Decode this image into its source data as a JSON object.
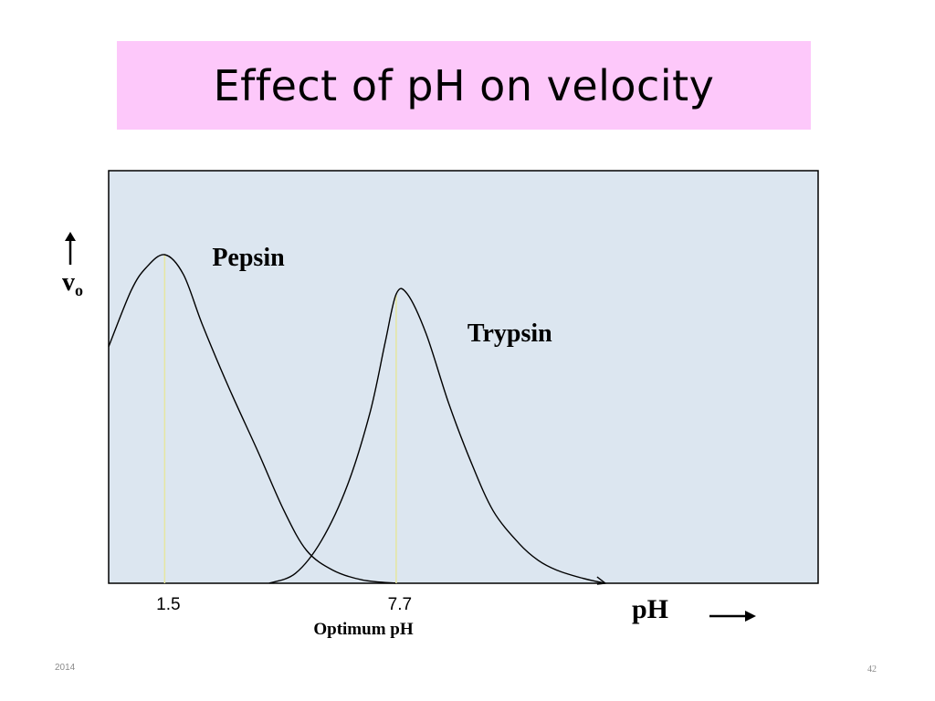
{
  "slide": {
    "title": "Effect of  pH  on velocity",
    "footer_left": "2014",
    "footer_right": "42"
  },
  "colors": {
    "title_bg": "#fdc8fa",
    "plot_bg": "#dce6f0",
    "curve": "#000000",
    "optimum_line": "#e6e6a0"
  },
  "chart_data": {
    "type": "line",
    "title": "",
    "xlabel": "pH",
    "ylabel": "v",
    "ylabel_subscript": "o",
    "annotation": "Optimum pH",
    "series": [
      {
        "name": "Pepsin",
        "optimum_pH": 1.5,
        "optimum_label": "1.5",
        "x": [
          0.0,
          0.6,
          1.0,
          1.5,
          2.0,
          2.5,
          3.2,
          4.0,
          4.7,
          5.3,
          6.0,
          6.8,
          7.7
        ],
        "y": [
          0.72,
          0.89,
          0.96,
          1.0,
          0.94,
          0.79,
          0.6,
          0.4,
          0.22,
          0.1,
          0.04,
          0.01,
          0.0
        ]
      },
      {
        "name": "Trypsin",
        "optimum_pH": 7.7,
        "optimum_label": "7.7",
        "x": [
          4.3,
          5.0,
          5.7,
          6.4,
          7.0,
          7.4,
          7.7,
          8.0,
          8.5,
          9.1,
          9.7,
          10.3,
          11.0,
          11.5,
          12.0,
          12.7,
          13.3
        ],
        "y": [
          0.0,
          0.03,
          0.13,
          0.3,
          0.52,
          0.73,
          0.88,
          0.88,
          0.76,
          0.55,
          0.37,
          0.22,
          0.12,
          0.07,
          0.04,
          0.015,
          0.0
        ]
      }
    ],
    "xlim": [
      0,
      19.0
    ],
    "ylim": [
      0,
      1.0
    ],
    "grid": false,
    "legend": "none (curves labeled directly)"
  }
}
